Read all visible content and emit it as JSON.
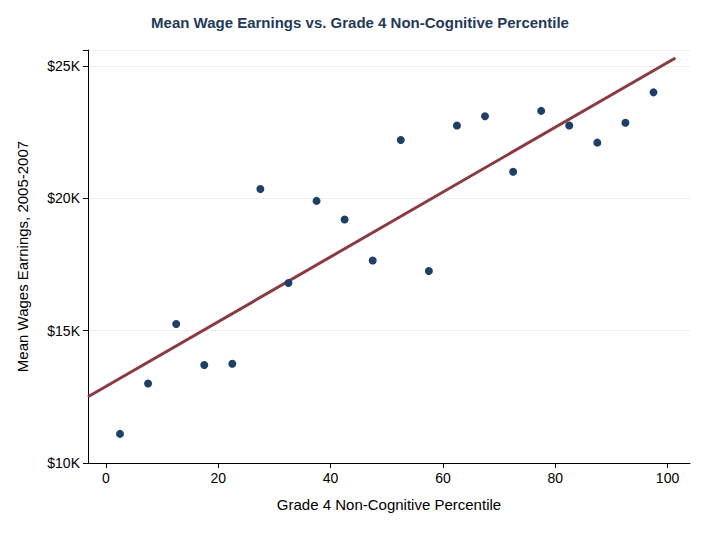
{
  "chart_data": {
    "type": "scatter",
    "title": "Mean Wage Earnings vs. Grade 4 Non-Cognitive Percentile",
    "x_label": "Grade 4 Non-Cognitive Percentile",
    "y_label": "Mean Wages Earnings, 2005-2007",
    "series": [
      {
        "type": "scatter",
        "color": "#1f3f66",
        "marker": "circle",
        "x": [
          2.5,
          7.5,
          12.5,
          17.5,
          22.5,
          27.5,
          32.5,
          37.5,
          42.5,
          47.5,
          52.5,
          57.5,
          62.5,
          67.5,
          72.5,
          77.5,
          82.5,
          87.5,
          92.5,
          97.5
        ],
        "values": [
          11100,
          13000,
          15250,
          13700,
          13750,
          20350,
          16800,
          19900,
          19200,
          17650,
          22200,
          17250,
          22750,
          23100,
          21000,
          23300,
          22750,
          22100,
          22850,
          24000
        ]
      },
      {
        "type": "line",
        "color": "#8b3a42",
        "line_style": "solid",
        "x": [
          -3.2,
          101.4
        ],
        "values": [
          12500,
          25300
        ]
      }
    ],
    "xlim": [
      -3.2,
      104
    ],
    "xticks": [
      0,
      20,
      40,
      60,
      80,
      100
    ],
    "ylim": [
      10000,
      25600
    ],
    "yticks": [
      {
        "value": 10000,
        "label": "$10K"
      },
      {
        "value": 15000,
        "label": "$15K"
      },
      {
        "value": 20000,
        "label": "$20K"
      },
      {
        "value": 25000,
        "label": "$25K"
      }
    ],
    "grid": true
  }
}
